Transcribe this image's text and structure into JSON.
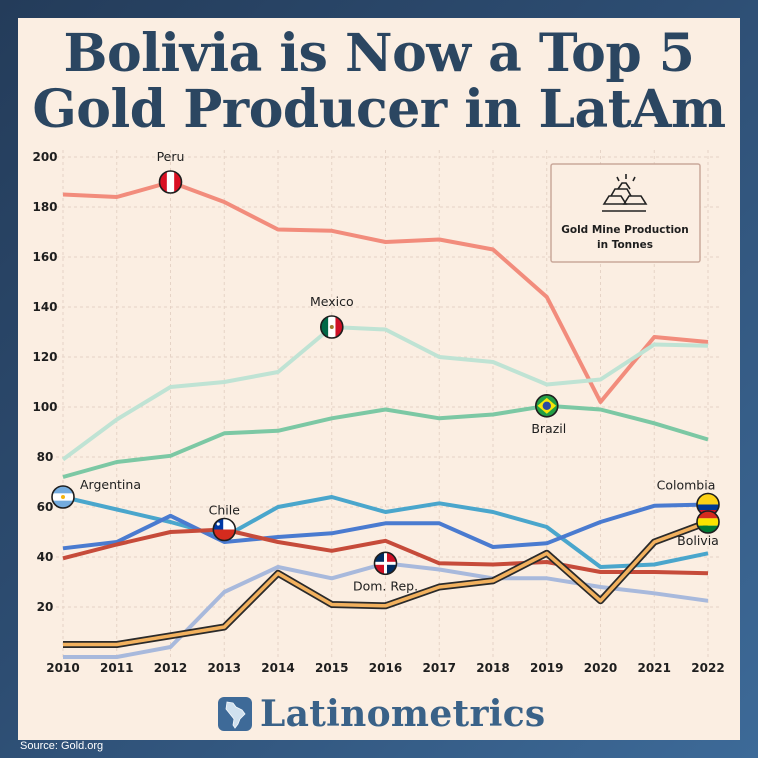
{
  "title": {
    "line1": "Bolivia is Now a Top 5",
    "line2": "Gold Producer in LatAm"
  },
  "legend_box": {
    "line1": "Gold Mine Production",
    "line2": "in Tonnes"
  },
  "brand": "Latinometrics",
  "source": "Source: Gold.org",
  "chart_data": {
    "type": "line",
    "x": [
      2010,
      2011,
      2012,
      2013,
      2014,
      2015,
      2016,
      2017,
      2018,
      2019,
      2020,
      2021,
      2022
    ],
    "ylim": [
      0,
      200
    ],
    "yticks": [
      20,
      40,
      60,
      80,
      100,
      120,
      140,
      160,
      180,
      200
    ],
    "grid": true,
    "series": [
      {
        "name": "Peru",
        "color": "#f28c7c",
        "values": [
          185,
          184,
          190,
          182,
          171,
          170.5,
          166,
          167,
          163,
          144,
          102,
          128,
          126
        ],
        "label_at": 2012
      },
      {
        "name": "Mexico",
        "color": "#bfe3d4",
        "values": [
          79,
          95,
          108,
          110,
          114,
          132,
          131,
          120,
          118,
          109,
          111,
          125,
          124.5
        ],
        "label_at": 2015
      },
      {
        "name": "Brazil",
        "color": "#7cc8a4",
        "values": [
          72,
          78,
          80.5,
          89.5,
          90.5,
          95.5,
          99,
          95.5,
          97,
          100.5,
          99,
          93.5,
          87
        ],
        "label_at": 2019
      },
      {
        "name": "Argentina",
        "color": "#4aa6cc",
        "values": [
          64,
          59,
          54,
          48,
          60,
          64,
          58,
          61.5,
          58,
          52,
          36,
          37,
          41.5
        ],
        "label_at": 2010
      },
      {
        "name": "Colombia",
        "color": "#4a7bd0",
        "values": [
          43.5,
          46,
          56.5,
          46,
          48,
          49.5,
          53.5,
          53.5,
          44,
          45.5,
          54,
          60.5,
          61
        ],
        "label_at": 2022
      },
      {
        "name": "Chile",
        "color": "#c64b3a",
        "values": [
          39.5,
          45,
          50,
          51,
          46,
          42.5,
          46.5,
          37.5,
          37,
          38,
          34,
          34,
          33.5
        ],
        "label_at": 2013
      },
      {
        "name": "Dom. Rep.",
        "color": "#a8b9dc",
        "values": [
          0,
          0,
          4,
          26,
          36,
          31.5,
          37.5,
          35,
          31.5,
          31.5,
          28,
          25.5,
          22.5
        ],
        "label_at": 2016
      },
      {
        "name": "Bolivia",
        "color": "#f2b15e",
        "outline": "#2a2a2a",
        "values": [
          5,
          5,
          8.5,
          12,
          33.5,
          21,
          20.5,
          28,
          30.5,
          41.5,
          22.5,
          46,
          54
        ],
        "label_at": 2022
      }
    ]
  }
}
